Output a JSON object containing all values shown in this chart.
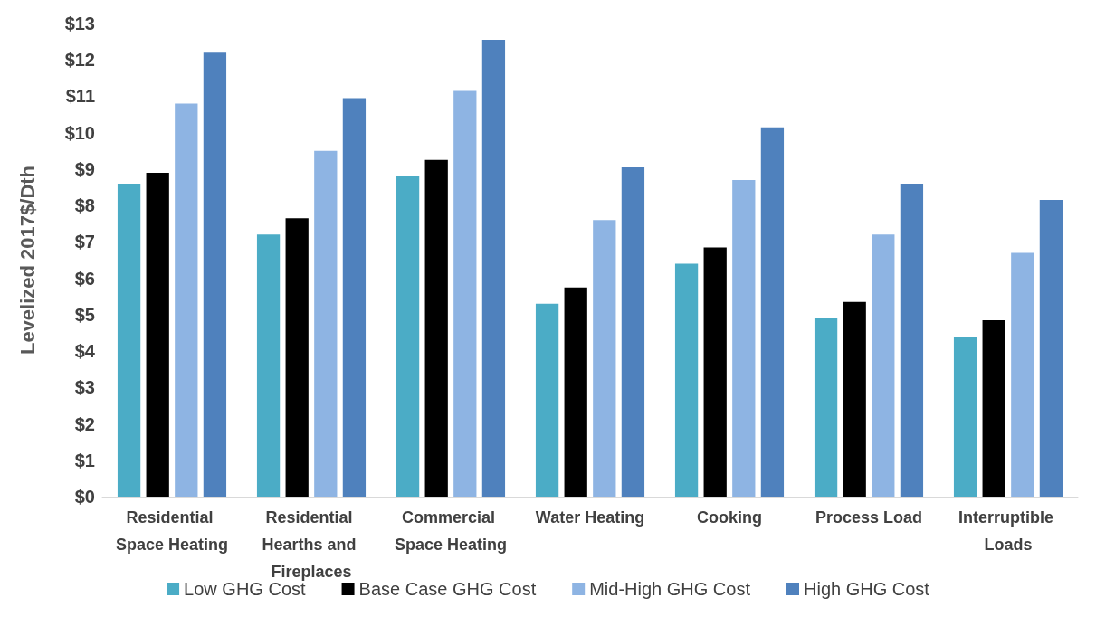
{
  "chart_data": {
    "type": "bar",
    "ylabel": "Levelized 2017$/Dth",
    "categories": [
      "Residential Space Heating",
      "Residential Hearths and Fireplaces",
      "Commercial Space Heating",
      "Water Heating",
      "Cooking",
      "Process Load",
      "Interruptible Loads"
    ],
    "series": [
      {
        "name": "Low GHG Cost",
        "color": "#4bacc6",
        "values": [
          8.6,
          7.2,
          8.8,
          5.3,
          6.4,
          4.9,
          4.4
        ]
      },
      {
        "name": "Base Case GHG Cost",
        "color": "#000000",
        "values": [
          8.9,
          7.65,
          9.25,
          5.75,
          6.85,
          5.35,
          4.85
        ]
      },
      {
        "name": "Mid-High GHG Cost",
        "color": "#8eb4e3",
        "values": [
          10.8,
          9.5,
          11.15,
          7.6,
          8.7,
          7.2,
          6.7
        ]
      },
      {
        "name": "High GHG Cost",
        "color": "#4f81bd",
        "values": [
          12.2,
          10.95,
          12.55,
          9.05,
          10.15,
          8.6,
          8.15
        ]
      }
    ],
    "ylim": [
      0,
      13
    ],
    "yticks": [
      {
        "value": 0,
        "label": "$0"
      },
      {
        "value": 1,
        "label": "$1"
      },
      {
        "value": 2,
        "label": "$2"
      },
      {
        "value": 3,
        "label": "$3"
      },
      {
        "value": 4,
        "label": "$4"
      },
      {
        "value": 5,
        "label": "$5"
      },
      {
        "value": 6,
        "label": "$6"
      },
      {
        "value": 7,
        "label": "$7"
      },
      {
        "value": 8,
        "label": "$8"
      },
      {
        "value": 9,
        "label": "$9"
      },
      {
        "value": 10,
        "label": "$10"
      },
      {
        "value": 11,
        "label": "$11"
      },
      {
        "value": 12,
        "label": "$12"
      },
      {
        "value": 13,
        "label": "$13"
      }
    ],
    "grid": false,
    "legend": "bottom"
  }
}
